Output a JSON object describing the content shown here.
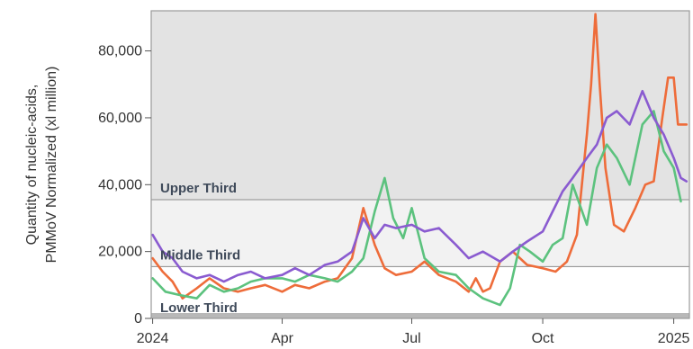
{
  "chart_data": {
    "type": "line",
    "ylabel": "Quantity of nucleic-acids, PMMoV Normalized (xl million)",
    "ylim": [
      0,
      92000
    ],
    "xlim": [
      "2023-12-31",
      "2025-01-12"
    ],
    "y_ticks": [
      {
        "value": 0,
        "label": "0"
      },
      {
        "value": 20000,
        "label": "20,000"
      },
      {
        "value": 40000,
        "label": "40,000"
      },
      {
        "value": 60000,
        "label": "60,000"
      },
      {
        "value": 80000,
        "label": "80,000"
      }
    ],
    "x_ticks": [
      {
        "date": "2024-01-01",
        "label": "2024"
      },
      {
        "date": "2024-04-01",
        "label": "Apr"
      },
      {
        "date": "2024-07-01",
        "label": "Jul"
      },
      {
        "date": "2024-10-01",
        "label": "Oct"
      },
      {
        "date": "2025-01-01",
        "label": "2025"
      }
    ],
    "bands": [
      {
        "label": "Lower Third",
        "from": 0,
        "to": 15500,
        "color": "#ffffff"
      },
      {
        "label": "Middle Third",
        "from": 15500,
        "to": 35500,
        "color": "#f2f2f2"
      },
      {
        "label": "Upper Third",
        "from": 35500,
        "to": 92000,
        "color": "#e3e3e3"
      }
    ],
    "series": [
      {
        "color": "#ee6c3a",
        "points": [
          [
            "2024-01-01",
            18000
          ],
          [
            "2024-01-08",
            14000
          ],
          [
            "2024-01-15",
            11000
          ],
          [
            "2024-01-22",
            6000
          ],
          [
            "2024-02-01",
            9000
          ],
          [
            "2024-02-10",
            12000
          ],
          [
            "2024-02-20",
            9000
          ],
          [
            "2024-03-01",
            8000
          ],
          [
            "2024-03-10",
            9000
          ],
          [
            "2024-03-20",
            10000
          ],
          [
            "2024-04-01",
            8000
          ],
          [
            "2024-04-10",
            10000
          ],
          [
            "2024-04-20",
            9000
          ],
          [
            "2024-05-01",
            11000
          ],
          [
            "2024-05-10",
            12000
          ],
          [
            "2024-05-20",
            18000
          ],
          [
            "2024-05-28",
            33000
          ],
          [
            "2024-06-05",
            22000
          ],
          [
            "2024-06-12",
            15000
          ],
          [
            "2024-06-20",
            13000
          ],
          [
            "2024-07-01",
            14000
          ],
          [
            "2024-07-10",
            17000
          ],
          [
            "2024-07-20",
            13000
          ],
          [
            "2024-08-01",
            11000
          ],
          [
            "2024-08-10",
            8000
          ],
          [
            "2024-08-15",
            12000
          ],
          [
            "2024-08-20",
            8000
          ],
          [
            "2024-08-25",
            9000
          ],
          [
            "2024-09-01",
            17000
          ],
          [
            "2024-09-10",
            20000
          ],
          [
            "2024-09-20",
            16000
          ],
          [
            "2024-10-01",
            15000
          ],
          [
            "2024-10-10",
            14000
          ],
          [
            "2024-10-18",
            17000
          ],
          [
            "2024-10-25",
            25000
          ],
          [
            "2024-11-01",
            55000
          ],
          [
            "2024-11-04",
            70000
          ],
          [
            "2024-11-07",
            91000
          ],
          [
            "2024-11-10",
            70000
          ],
          [
            "2024-11-14",
            45000
          ],
          [
            "2024-11-20",
            28000
          ],
          [
            "2024-11-27",
            26000
          ],
          [
            "2024-12-05",
            33000
          ],
          [
            "2024-12-12",
            40000
          ],
          [
            "2024-12-18",
            41000
          ],
          [
            "2024-12-24",
            60000
          ],
          [
            "2024-12-28",
            72000
          ],
          [
            "2025-01-01",
            72000
          ],
          [
            "2025-01-04",
            58000
          ],
          [
            "2025-01-10",
            58000
          ]
        ]
      },
      {
        "color": "#5cc27e",
        "points": [
          [
            "2024-01-01",
            12000
          ],
          [
            "2024-01-10",
            8000
          ],
          [
            "2024-01-20",
            7000
          ],
          [
            "2024-02-01",
            6000
          ],
          [
            "2024-02-10",
            10000
          ],
          [
            "2024-02-20",
            8000
          ],
          [
            "2024-03-01",
            9000
          ],
          [
            "2024-03-10",
            11000
          ],
          [
            "2024-03-20",
            12000
          ],
          [
            "2024-04-01",
            12000
          ],
          [
            "2024-04-10",
            11000
          ],
          [
            "2024-04-20",
            13000
          ],
          [
            "2024-05-01",
            12000
          ],
          [
            "2024-05-10",
            11000
          ],
          [
            "2024-05-20",
            14000
          ],
          [
            "2024-05-28",
            18000
          ],
          [
            "2024-06-05",
            32000
          ],
          [
            "2024-06-12",
            42000
          ],
          [
            "2024-06-18",
            30000
          ],
          [
            "2024-06-25",
            24000
          ],
          [
            "2024-07-01",
            33000
          ],
          [
            "2024-07-10",
            18000
          ],
          [
            "2024-07-20",
            14000
          ],
          [
            "2024-08-01",
            13000
          ],
          [
            "2024-08-10",
            9000
          ],
          [
            "2024-08-20",
            6000
          ],
          [
            "2024-09-01",
            4000
          ],
          [
            "2024-09-08",
            9000
          ],
          [
            "2024-09-15",
            22000
          ],
          [
            "2024-09-22",
            20000
          ],
          [
            "2024-10-01",
            17000
          ],
          [
            "2024-10-08",
            22000
          ],
          [
            "2024-10-15",
            24000
          ],
          [
            "2024-10-22",
            40000
          ],
          [
            "2024-11-01",
            28000
          ],
          [
            "2024-11-08",
            45000
          ],
          [
            "2024-11-15",
            52000
          ],
          [
            "2024-11-22",
            48000
          ],
          [
            "2024-12-01",
            40000
          ],
          [
            "2024-12-10",
            58000
          ],
          [
            "2024-12-18",
            62000
          ],
          [
            "2024-12-25",
            50000
          ],
          [
            "2025-01-01",
            45000
          ],
          [
            "2025-01-06",
            35000
          ]
        ]
      },
      {
        "color": "#8a5bd0",
        "points": [
          [
            "2024-01-01",
            25000
          ],
          [
            "2024-01-08",
            20000
          ],
          [
            "2024-01-15",
            18000
          ],
          [
            "2024-01-22",
            14000
          ],
          [
            "2024-02-01",
            12000
          ],
          [
            "2024-02-10",
            13000
          ],
          [
            "2024-02-20",
            11000
          ],
          [
            "2024-03-01",
            13000
          ],
          [
            "2024-03-10",
            14000
          ],
          [
            "2024-03-20",
            12000
          ],
          [
            "2024-04-01",
            13000
          ],
          [
            "2024-04-10",
            15000
          ],
          [
            "2024-04-20",
            13000
          ],
          [
            "2024-05-01",
            16000
          ],
          [
            "2024-05-10",
            17000
          ],
          [
            "2024-05-20",
            20000
          ],
          [
            "2024-05-28",
            30000
          ],
          [
            "2024-06-05",
            24000
          ],
          [
            "2024-06-12",
            28000
          ],
          [
            "2024-06-20",
            27000
          ],
          [
            "2024-07-01",
            28000
          ],
          [
            "2024-07-10",
            26000
          ],
          [
            "2024-07-20",
            27000
          ],
          [
            "2024-08-01",
            22000
          ],
          [
            "2024-08-10",
            18000
          ],
          [
            "2024-08-20",
            20000
          ],
          [
            "2024-09-01",
            17000
          ],
          [
            "2024-09-10",
            20000
          ],
          [
            "2024-09-20",
            23000
          ],
          [
            "2024-10-01",
            26000
          ],
          [
            "2024-10-08",
            32000
          ],
          [
            "2024-10-15",
            38000
          ],
          [
            "2024-10-22",
            42000
          ],
          [
            "2024-11-01",
            48000
          ],
          [
            "2024-11-08",
            52000
          ],
          [
            "2024-11-15",
            60000
          ],
          [
            "2024-11-22",
            62000
          ],
          [
            "2024-12-01",
            58000
          ],
          [
            "2024-12-10",
            68000
          ],
          [
            "2024-12-18",
            60000
          ],
          [
            "2024-12-25",
            55000
          ],
          [
            "2025-01-01",
            48000
          ],
          [
            "2025-01-06",
            42000
          ],
          [
            "2025-01-10",
            41000
          ]
        ]
      }
    ]
  }
}
